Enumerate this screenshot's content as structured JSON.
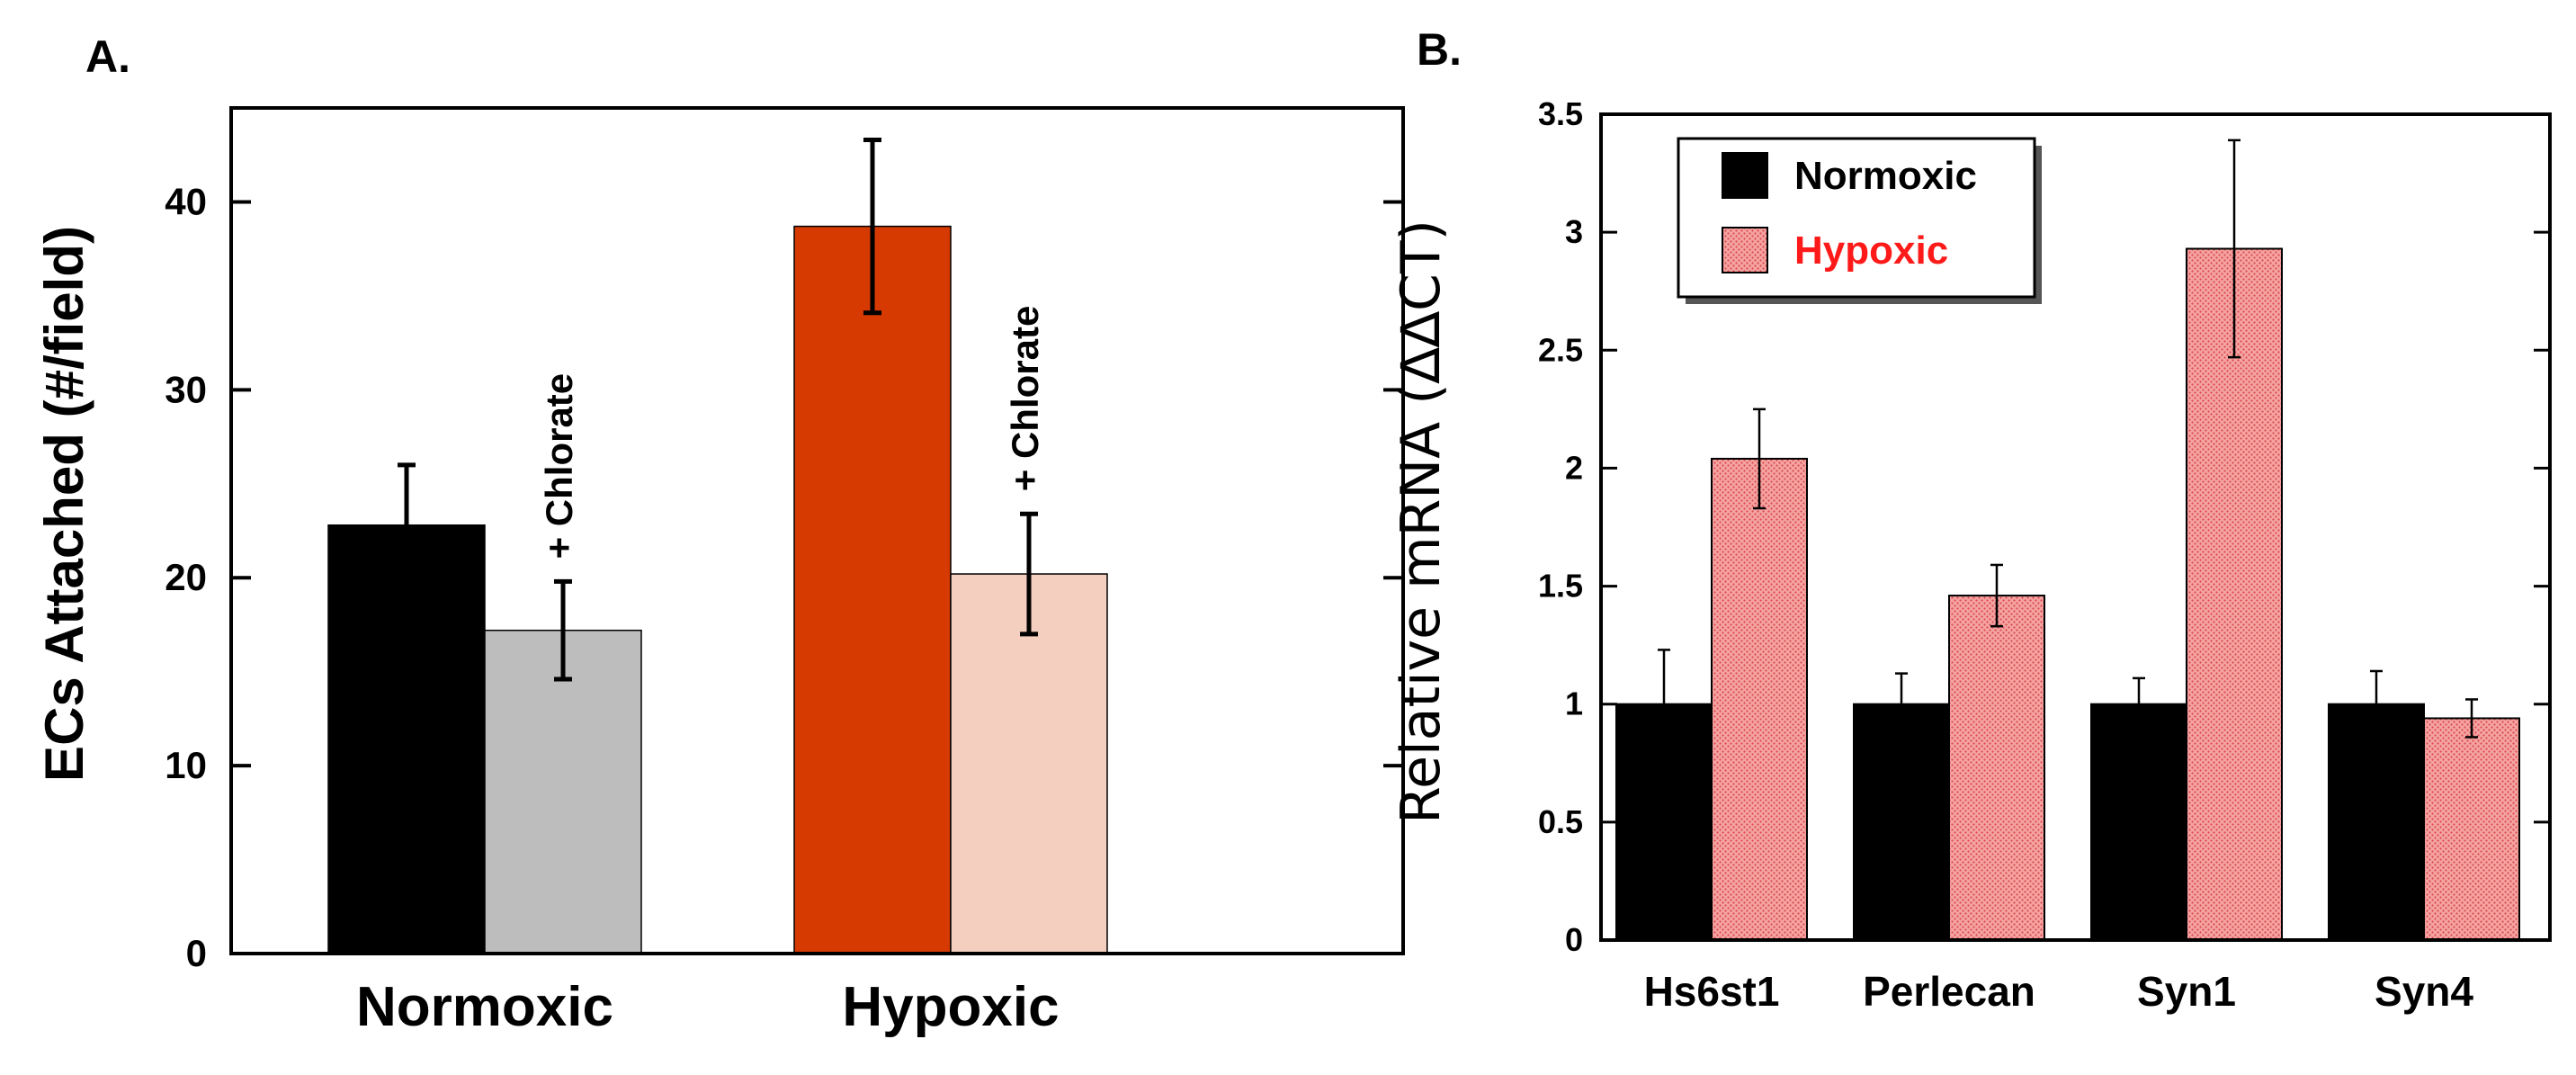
{
  "chart_data": [
    {
      "panel_label": "A.",
      "type": "bar",
      "ylabel": "ECs Attached (#/field)",
      "ylim": [
        0,
        45
      ],
      "yticks": [
        "0",
        "10",
        "20",
        "30",
        "40"
      ],
      "ytick_values": [
        0,
        10,
        20,
        30,
        40
      ],
      "groups": [
        {
          "label": "Normoxic",
          "bars": [
            {
              "name": "Normoxic",
              "value": 22.8,
              "error": 3.2,
              "color": "#000000",
              "annotation": ""
            },
            {
              "name": "Normoxic + Chlorate",
              "value": 17.2,
              "error": 2.6,
              "color": "#bdbdbd",
              "annotation": "+ Chlorate"
            }
          ]
        },
        {
          "label": "Hypoxic",
          "bars": [
            {
              "name": "Hypoxic",
              "value": 38.7,
              "error": 4.6,
              "color": "#d63a00",
              "annotation": ""
            },
            {
              "name": "Hypoxic + Chlorate",
              "value": 20.2,
              "error": 3.2,
              "color": "#f4cfc0",
              "annotation": "+ Chlorate"
            }
          ]
        }
      ]
    },
    {
      "panel_label": "B.",
      "type": "bar",
      "ylabel": "Relative mRNA (∆∆CT)",
      "ylim": [
        0,
        3.5
      ],
      "yticks": [
        "0",
        "0.5",
        "1",
        "1.5",
        "2",
        "2.5",
        "3",
        "3.5"
      ],
      "ytick_values": [
        0,
        0.5,
        1,
        1.5,
        2,
        2.5,
        3,
        3.5
      ],
      "categories": [
        "Hs6st1",
        "Perlecan",
        "Syn1",
        "Syn4"
      ],
      "series": [
        {
          "name": "Normoxic",
          "values": [
            1.0,
            1.0,
            1.0,
            1.0
          ],
          "errors": [
            0.23,
            0.13,
            0.11,
            0.14
          ],
          "color": "#000000",
          "legend_text_color": "#000000"
        },
        {
          "name": "Hypoxic",
          "values": [
            2.04,
            1.46,
            2.93,
            0.94
          ],
          "errors": [
            0.21,
            0.13,
            0.46,
            0.08
          ],
          "color": "#f08a8a",
          "legend_text_color": "#ff1a1a"
        }
      ]
    }
  ]
}
